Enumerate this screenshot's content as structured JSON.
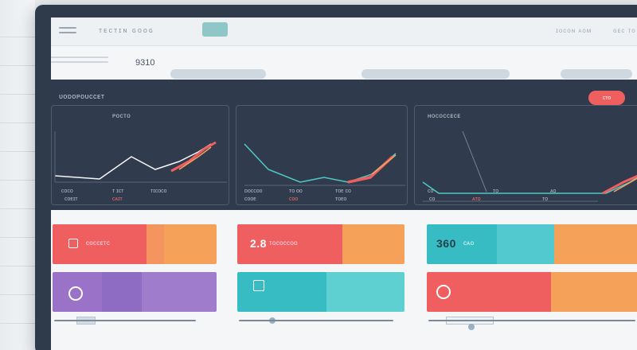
{
  "toolbar": {
    "menu_icon": "menu-icon",
    "title": "ᴛᴇᴄᴛɪɴ ɢᴏᴏɢ",
    "links": [
      "ɪᴏᴄᴏɴ ᴀᴏᴍ",
      "ɢᴇᴄ ᴛᴏ"
    ]
  },
  "subbar": {
    "value": "9310"
  },
  "dashboard": {
    "title": "ᴜᴏᴅᴏᴘᴏᴜᴄᴄᴇᴛ",
    "alert_label": "ᴄᴛᴏ",
    "cards": [
      {
        "label": "ᴘᴏᴄᴛᴏ",
        "ticks": [
          "ᴄᴏᴄᴏ",
          "ᴛ ɪᴄᴛ",
          "ᴛɪᴄᴏᴄᴏ"
        ],
        "subticks": [
          "ᴄᴏᴇɪᴛ",
          "ᴄᴀɪᴛ"
        ],
        "line_color": "#f4f6f8",
        "accent_color": "#ef5f5f"
      },
      {
        "label": "",
        "ticks": [
          "ᴅᴏᴄᴄᴏᴏ",
          "ᴛᴏ ᴏᴏ",
          "ᴛᴏᴇ ᴄᴏ"
        ],
        "subticks": [
          "ᴄᴏᴏᴇ",
          "ᴄᴏᴏ",
          "ᴛᴏᴇᴏ"
        ],
        "line_color": "#4fc8c8",
        "accent_color": "#ef5f5f"
      },
      {
        "label": "ʜᴏᴄᴏᴄᴄᴇᴄᴇ",
        "ticks": [
          "ᴄᴏ",
          "ᴛᴏ",
          "ᴀᴏ"
        ],
        "subticks": [
          "ᴄᴏ",
          "ᴀᴛᴏ",
          "ᴛᴏ"
        ],
        "line_color": "#4fc8c8",
        "accent_color": "#ef5f5f"
      }
    ]
  },
  "tiles": {
    "row1": [
      {
        "value": "",
        "caption": "ᴄᴏᴄᴄᴇᴛᴄ",
        "icon": "square-icon"
      },
      {
        "value": "2.8",
        "caption": "ᴛᴏᴄᴏᴄᴄᴏᴏ"
      },
      {
        "value": "360",
        "caption": "ᴄᴀᴏ"
      }
    ],
    "row2": [
      {
        "icon": "circle-icon"
      },
      {
        "icon": "bar-icon"
      },
      {
        "icon": "ring-icon"
      }
    ]
  },
  "colors": {
    "coral": "#ef5f5f",
    "orange": "#f5a15a",
    "teal": "#38bcc4",
    "purple": "#8e6cc4",
    "dark": "#2f3a4c"
  }
}
